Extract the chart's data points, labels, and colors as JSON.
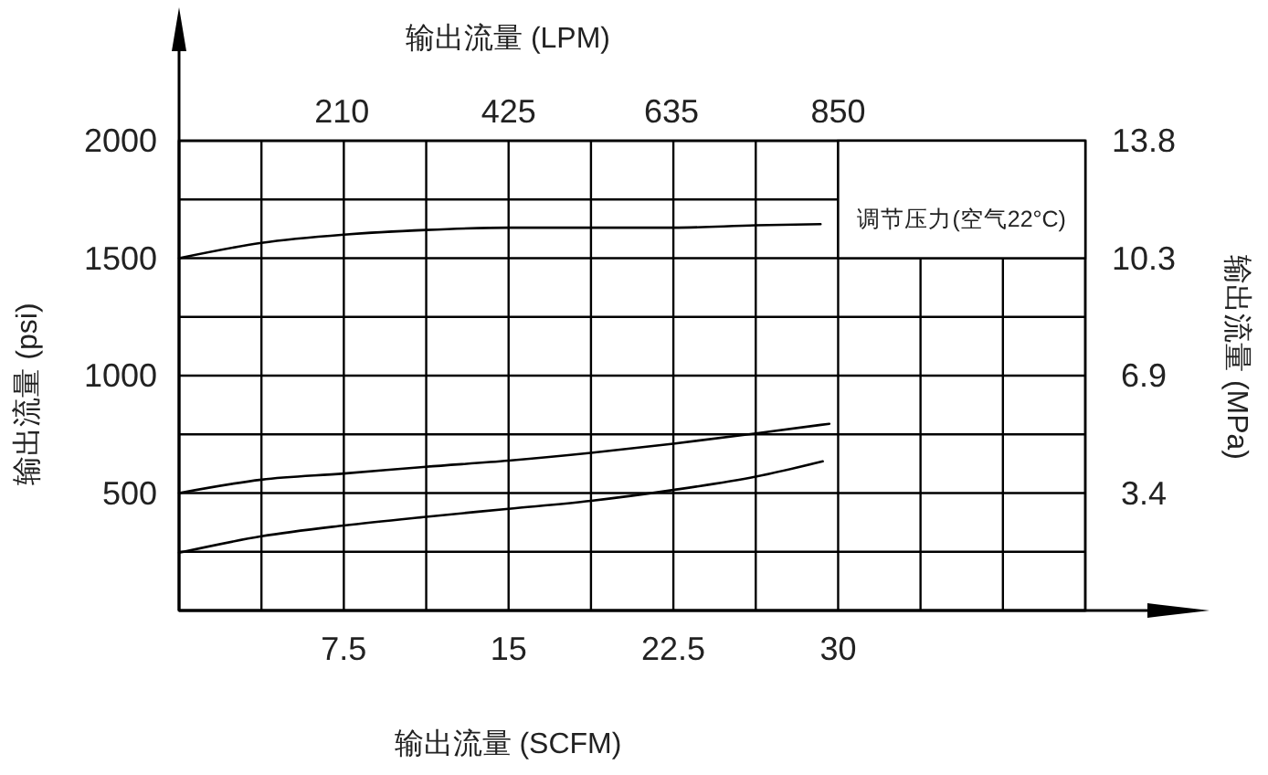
{
  "chart_data": {
    "type": "line",
    "xlabel": "输出流量 (SCFM)",
    "ylabel": "输出流量 (psi)",
    "x2label": "输出流量 (LPM)",
    "y2label": "输出流量 (MPa)",
    "xlim": [
      0,
      41.25
    ],
    "xticks": [
      {
        "value": 0,
        "label": null
      },
      {
        "value": 3.75,
        "label": null
      },
      7.5,
      {
        "value": 11.25,
        "label": null
      },
      15,
      {
        "value": 18.75,
        "label": null
      },
      22.5,
      {
        "value": 26.25,
        "label": null
      },
      30,
      {
        "value": 33.75,
        "label": null
      },
      {
        "value": 37.5,
        "label": null
      },
      {
        "value": 41.25,
        "label": null
      }
    ],
    "x2lim": [
      0,
      1168.75
    ],
    "x2ticks": [
      210,
      425,
      635,
      850
    ],
    "ylim": [
      0,
      2000
    ],
    "yticks": [
      {
        "value": 0,
        "label": null
      },
      {
        "value": 250,
        "label": null
      },
      500,
      {
        "value": 750,
        "label": null
      },
      1000,
      {
        "value": 1250,
        "label": null
      },
      1500,
      {
        "value": 1750,
        "label": null
      },
      2000
    ],
    "y2lim": [
      0,
      13.8
    ],
    "y2ticks": [
      {
        "value": 3.45,
        "label": "3.4"
      },
      6.9,
      {
        "value": 10.35,
        "label": "10.3"
      },
      13.8
    ],
    "grid": true,
    "line_style": "solid",
    "marker": "none",
    "annotations": [
      "调节压力(空气22°C)"
    ],
    "series": [
      {
        "color": "#000000",
        "x": [
          0,
          3.75,
          7.5,
          11.25,
          15,
          18.75,
          22.5,
          26.25,
          29.2
        ],
        "values": [
          1500,
          1565,
          1600,
          1620,
          1630,
          1630,
          1630,
          1640,
          1645
        ]
      },
      {
        "color": "#000000",
        "x": [
          0,
          3.75,
          7.5,
          11.25,
          15,
          18.75,
          22.5,
          26.25,
          29.6
        ],
        "values": [
          500,
          557,
          583,
          612,
          638,
          671,
          710,
          754,
          795
        ]
      },
      {
        "color": "#000000",
        "x": [
          0,
          3.75,
          7.5,
          11.25,
          15,
          18.75,
          22.5,
          26.25,
          29.3
        ],
        "values": [
          246,
          316,
          362,
          399,
          433,
          467,
          513,
          570,
          635
        ]
      }
    ]
  }
}
